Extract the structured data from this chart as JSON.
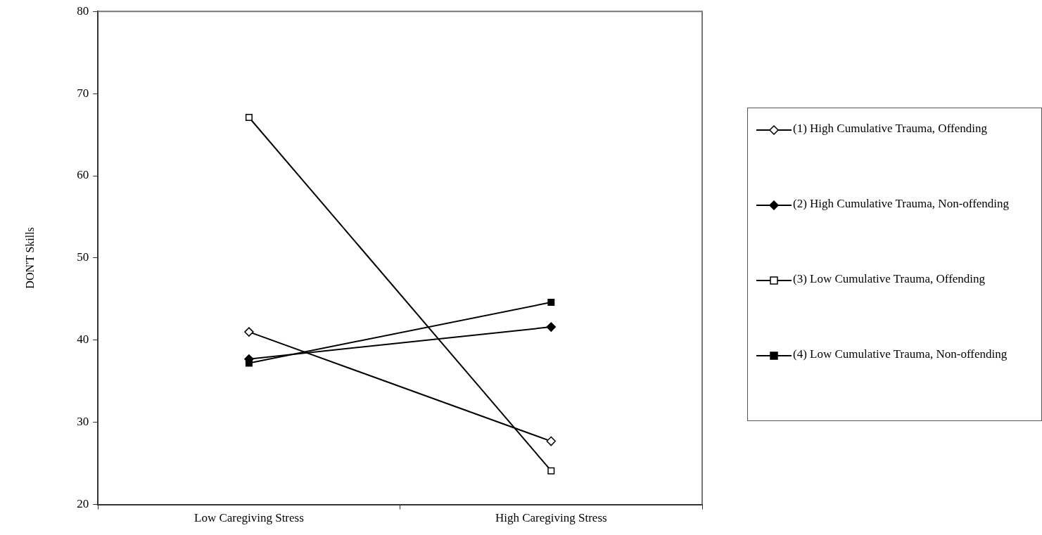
{
  "chart_data": {
    "type": "line",
    "ylabel": "DON'T Skills",
    "categories": [
      "Low Caregiving Stress",
      "High Caregiving Stress"
    ],
    "series": [
      {
        "name": "(1) High Cumulative Trauma, Offending",
        "color": "#000000",
        "marker": "diamond",
        "values": [
          41.0,
          27.7
        ]
      },
      {
        "name": "(2) High Cumulative Trauma, Non-offending",
        "color": "#000000",
        "marker": "diamond",
        "values": [
          37.7,
          41.6
        ]
      },
      {
        "name": "(3) Low Cumulative Trauma, Offending",
        "color": "#000000",
        "marker": "square",
        "values": [
          67.1,
          24.1
        ]
      },
      {
        "name": "(4) Low Cumulative Trauma, Non-offending",
        "color": "#000000",
        "marker": "square",
        "values": [
          37.2,
          44.6
        ]
      }
    ],
    "ylim": [
      20,
      80
    ],
    "yticks": [
      20,
      30,
      40,
      50,
      60,
      70,
      80
    ],
    "grid": false,
    "legend": "right",
    "line_style": "solid"
  }
}
